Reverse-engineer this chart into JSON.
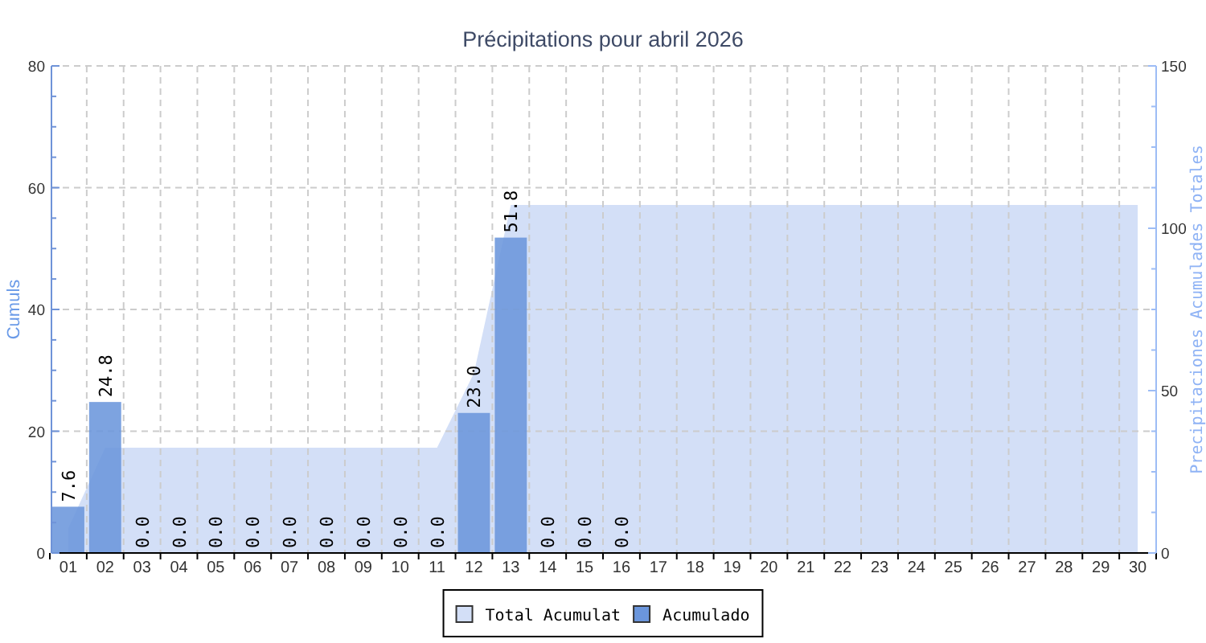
{
  "chart_data": {
    "type": "bar",
    "title": "Précipitations pour abril 2026",
    "ylabel": "Cumuls",
    "y2label": "Precipitaciones Acumulades Totales",
    "categories": [
      "01",
      "02",
      "03",
      "04",
      "05",
      "06",
      "07",
      "08",
      "09",
      "10",
      "11",
      "12",
      "13",
      "14",
      "15",
      "16",
      "17",
      "18",
      "19",
      "20",
      "21",
      "22",
      "23",
      "24",
      "25",
      "26",
      "27",
      "28",
      "29",
      "30"
    ],
    "series": [
      {
        "name": "Total Acumulat",
        "type": "area",
        "axis": "y2",
        "color": "#d3dff7",
        "values": [
          7.6,
          32.4,
          32.4,
          32.4,
          32.4,
          32.4,
          32.4,
          32.4,
          32.4,
          32.4,
          32.4,
          55.4,
          107.2,
          107.2,
          107.2,
          107.2,
          107.2,
          107.2,
          107.2,
          107.2,
          107.2,
          107.2,
          107.2,
          107.2,
          107.2,
          107.2,
          107.2,
          107.2,
          107.2,
          107.2
        ]
      },
      {
        "name": "Acumulado",
        "color": "#6b96dc",
        "values": [
          7.6,
          24.8,
          0,
          0,
          0,
          0,
          0,
          0,
          0,
          0,
          0,
          23.0,
          51.8,
          0,
          0,
          0,
          null,
          null,
          null,
          null,
          null,
          null,
          null,
          null,
          null,
          null,
          null,
          null,
          null,
          null
        ],
        "value_labels": [
          "7.6",
          "24.8",
          "0.0",
          "0.0",
          "0.0",
          "0.0",
          "0.0",
          "0.0",
          "0.0",
          "0.0",
          "0.0",
          "23.0",
          "51.8",
          "0.0",
          "0.0",
          "0.0",
          null,
          null,
          null,
          null,
          null,
          null,
          null,
          null,
          null,
          null,
          null,
          null,
          null,
          null
        ]
      }
    ],
    "ylim": [
      0,
      80
    ],
    "yticks": [
      0,
      {
        "value": 5,
        "label": null
      },
      {
        "value": 10,
        "label": null
      },
      {
        "value": 15,
        "label": null
      },
      20,
      {
        "value": 25,
        "label": null
      },
      {
        "value": 30,
        "label": null
      },
      {
        "value": 35,
        "label": null
      },
      40,
      {
        "value": 45,
        "label": null
      },
      {
        "value": 50,
        "label": null
      },
      {
        "value": 55,
        "label": null
      },
      60,
      {
        "value": 65,
        "label": null
      },
      {
        "value": 70,
        "label": null
      },
      {
        "value": 75,
        "label": null
      },
      80
    ],
    "y2lim": [
      0,
      150
    ],
    "y2ticks": [
      0,
      {
        "value": 12.5,
        "label": null
      },
      {
        "value": 25,
        "label": null
      },
      {
        "value": 37.5,
        "label": null
      },
      50,
      {
        "value": 62.5,
        "label": null
      },
      {
        "value": 75,
        "label": null
      },
      {
        "value": 87.5,
        "label": null
      },
      100,
      {
        "value": 112.5,
        "label": null
      },
      {
        "value": 125,
        "label": null
      },
      {
        "value": 137.5,
        "label": null
      },
      150
    ],
    "grid": true,
    "legend": "bottom"
  }
}
